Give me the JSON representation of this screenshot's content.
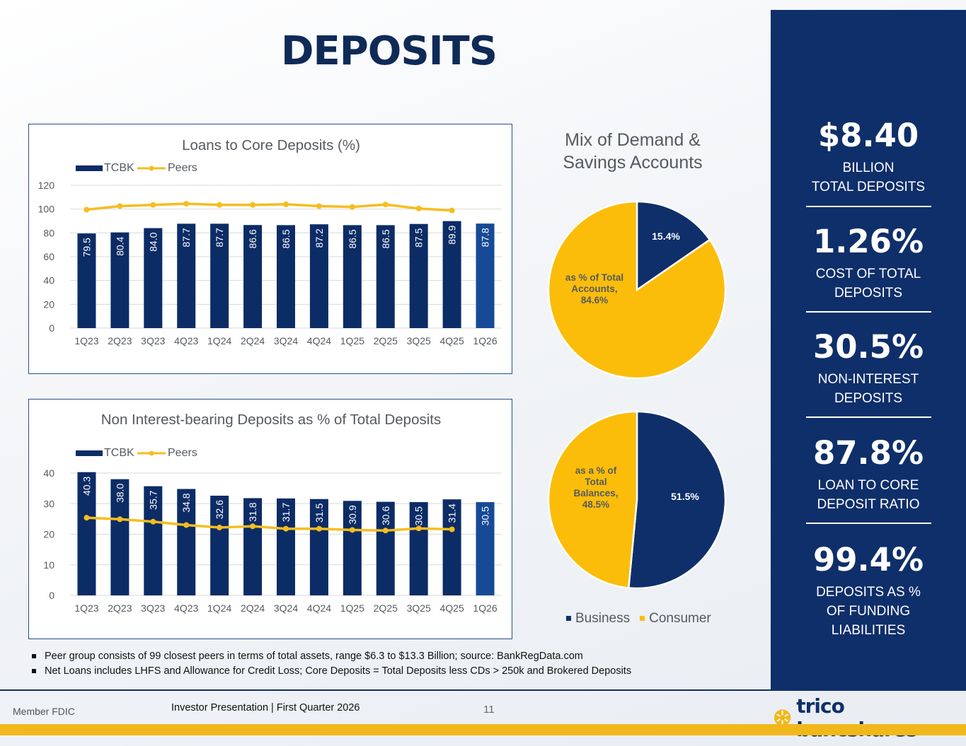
{
  "title": "DEPOSITS",
  "colors": {
    "navy": "#0f2f6a",
    "bar": "#0c2c66",
    "bar_last": "#164a97",
    "gold": "#fbbd0a",
    "peers": "#f5bd1f"
  },
  "chart_data": [
    {
      "type": "bar",
      "title": "Loans to Core Deposits (%)",
      "categories": [
        "1Q23",
        "2Q23",
        "3Q23",
        "4Q23",
        "1Q24",
        "2Q24",
        "3Q24",
        "4Q24",
        "1Q25",
        "2Q25",
        "3Q25",
        "4Q25",
        "1Q26"
      ],
      "series": [
        {
          "name": "TCBK",
          "type": "bar",
          "values": [
            79.5,
            80.4,
            84.0,
            87.7,
            87.7,
            86.6,
            86.5,
            87.2,
            86.5,
            86.5,
            87.5,
            89.9,
            87.8
          ],
          "labels": [
            "79.5",
            "80.4",
            "84.0",
            "87.7",
            "87.7",
            "86.6",
            "86.5",
            "87.2",
            "86.5",
            "86.5",
            "87.5",
            "89.9",
            "87.8"
          ]
        },
        {
          "name": "Peers",
          "type": "line",
          "values": [
            99.5,
            102.5,
            103.5,
            104.5,
            103.5,
            103.5,
            104.0,
            102.5,
            101.8,
            103.8,
            100.5,
            98.8,
            null
          ]
        }
      ],
      "yticks": [
        "0",
        "20",
        "40",
        "60",
        "80",
        "100",
        "120"
      ],
      "ylim": [
        0,
        120
      ],
      "grid": true,
      "legend": "top-left"
    },
    {
      "type": "bar",
      "title": "Non Interest-bearing Deposits as % of Total Deposits",
      "categories": [
        "1Q23",
        "2Q23",
        "3Q23",
        "4Q23",
        "1Q24",
        "2Q24",
        "3Q24",
        "4Q24",
        "1Q25",
        "2Q25",
        "3Q25",
        "4Q25",
        "1Q26"
      ],
      "series": [
        {
          "name": "TCBK",
          "type": "bar",
          "values": [
            40.3,
            38.0,
            35.7,
            34.8,
            32.6,
            31.8,
            31.7,
            31.5,
            30.9,
            30.6,
            30.5,
            31.4,
            30.5
          ],
          "labels": [
            "40.3",
            "38.0",
            "35.7",
            "34.8",
            "32.6",
            "31.8",
            "31.7",
            "31.5",
            "30.9",
            "30.6",
            "30.5",
            "31.4",
            "30.5"
          ]
        },
        {
          "name": "Peers",
          "type": "line",
          "values": [
            25.4,
            24.9,
            24.1,
            23.0,
            22.2,
            22.6,
            21.8,
            21.8,
            21.4,
            21.2,
            21.9,
            21.6,
            null
          ]
        }
      ],
      "yticks": [
        "0",
        "10",
        "20",
        "30",
        "40"
      ],
      "ylim": [
        0,
        40
      ],
      "grid": true,
      "legend": "top-left"
    },
    {
      "type": "pie",
      "title": "Mix of Demand & Savings Accounts",
      "slices": [
        {
          "name": "Business",
          "value": 15.4,
          "label": "15.4%"
        },
        {
          "name": "Consumer",
          "value": 84.6,
          "label": "as % of Total Accounts, 84.6%"
        }
      ]
    },
    {
      "type": "pie",
      "slices": [
        {
          "name": "Business",
          "value": 51.5,
          "label": "51.5%"
        },
        {
          "name": "Consumer",
          "value": 48.5,
          "label": "as a % of Total Balances, 48.5%"
        }
      ],
      "legend": [
        "Business",
        "Consumer"
      ]
    }
  ],
  "pie": {
    "title_line1": "Mix of Demand &",
    "title_line2": "Savings Accounts",
    "pie1_inner_label": "15.4%",
    "pie1_outer_lines": [
      "as % of Total",
      "Accounts,",
      "84.6%"
    ],
    "pie2_inner_label": "51.5%",
    "pie2_outer_lines": [
      "as a % of",
      "Total",
      "Balances,",
      "48.5%"
    ],
    "legend_business": "Business",
    "legend_consumer": "Consumer"
  },
  "sidebar": {
    "stats": [
      {
        "big": "$8.40",
        "lines": [
          "BILLION",
          "TOTAL DEPOSITS"
        ]
      },
      {
        "big": "1.26%",
        "lines": [
          "COST OF TOTAL",
          "DEPOSITS"
        ]
      },
      {
        "big": "30.5%",
        "lines": [
          "NON-INTEREST",
          "DEPOSITS"
        ]
      },
      {
        "big": "87.8%",
        "lines": [
          "LOAN TO CORE",
          "DEPOSIT RATIO"
        ]
      },
      {
        "big": "99.4%",
        "lines": [
          "DEPOSITS AS %",
          "OF FUNDING",
          "LIABILITIES"
        ]
      }
    ]
  },
  "notes": [
    "Peer group consists of 99 closest peers in terms of total assets, range $6.3 to $13.3 Billion; source: BankRegData.com",
    "Net Loans includes LHFS and Allowance for Credit Loss; Core Deposits = Total Deposits less CDs > 250k and Brokered Deposits"
  ],
  "footer": {
    "member": "Member FDIC",
    "presentation": "Investor Presentation  |  First Quarter 2026",
    "page": "11",
    "logo": "trico bancshares"
  }
}
